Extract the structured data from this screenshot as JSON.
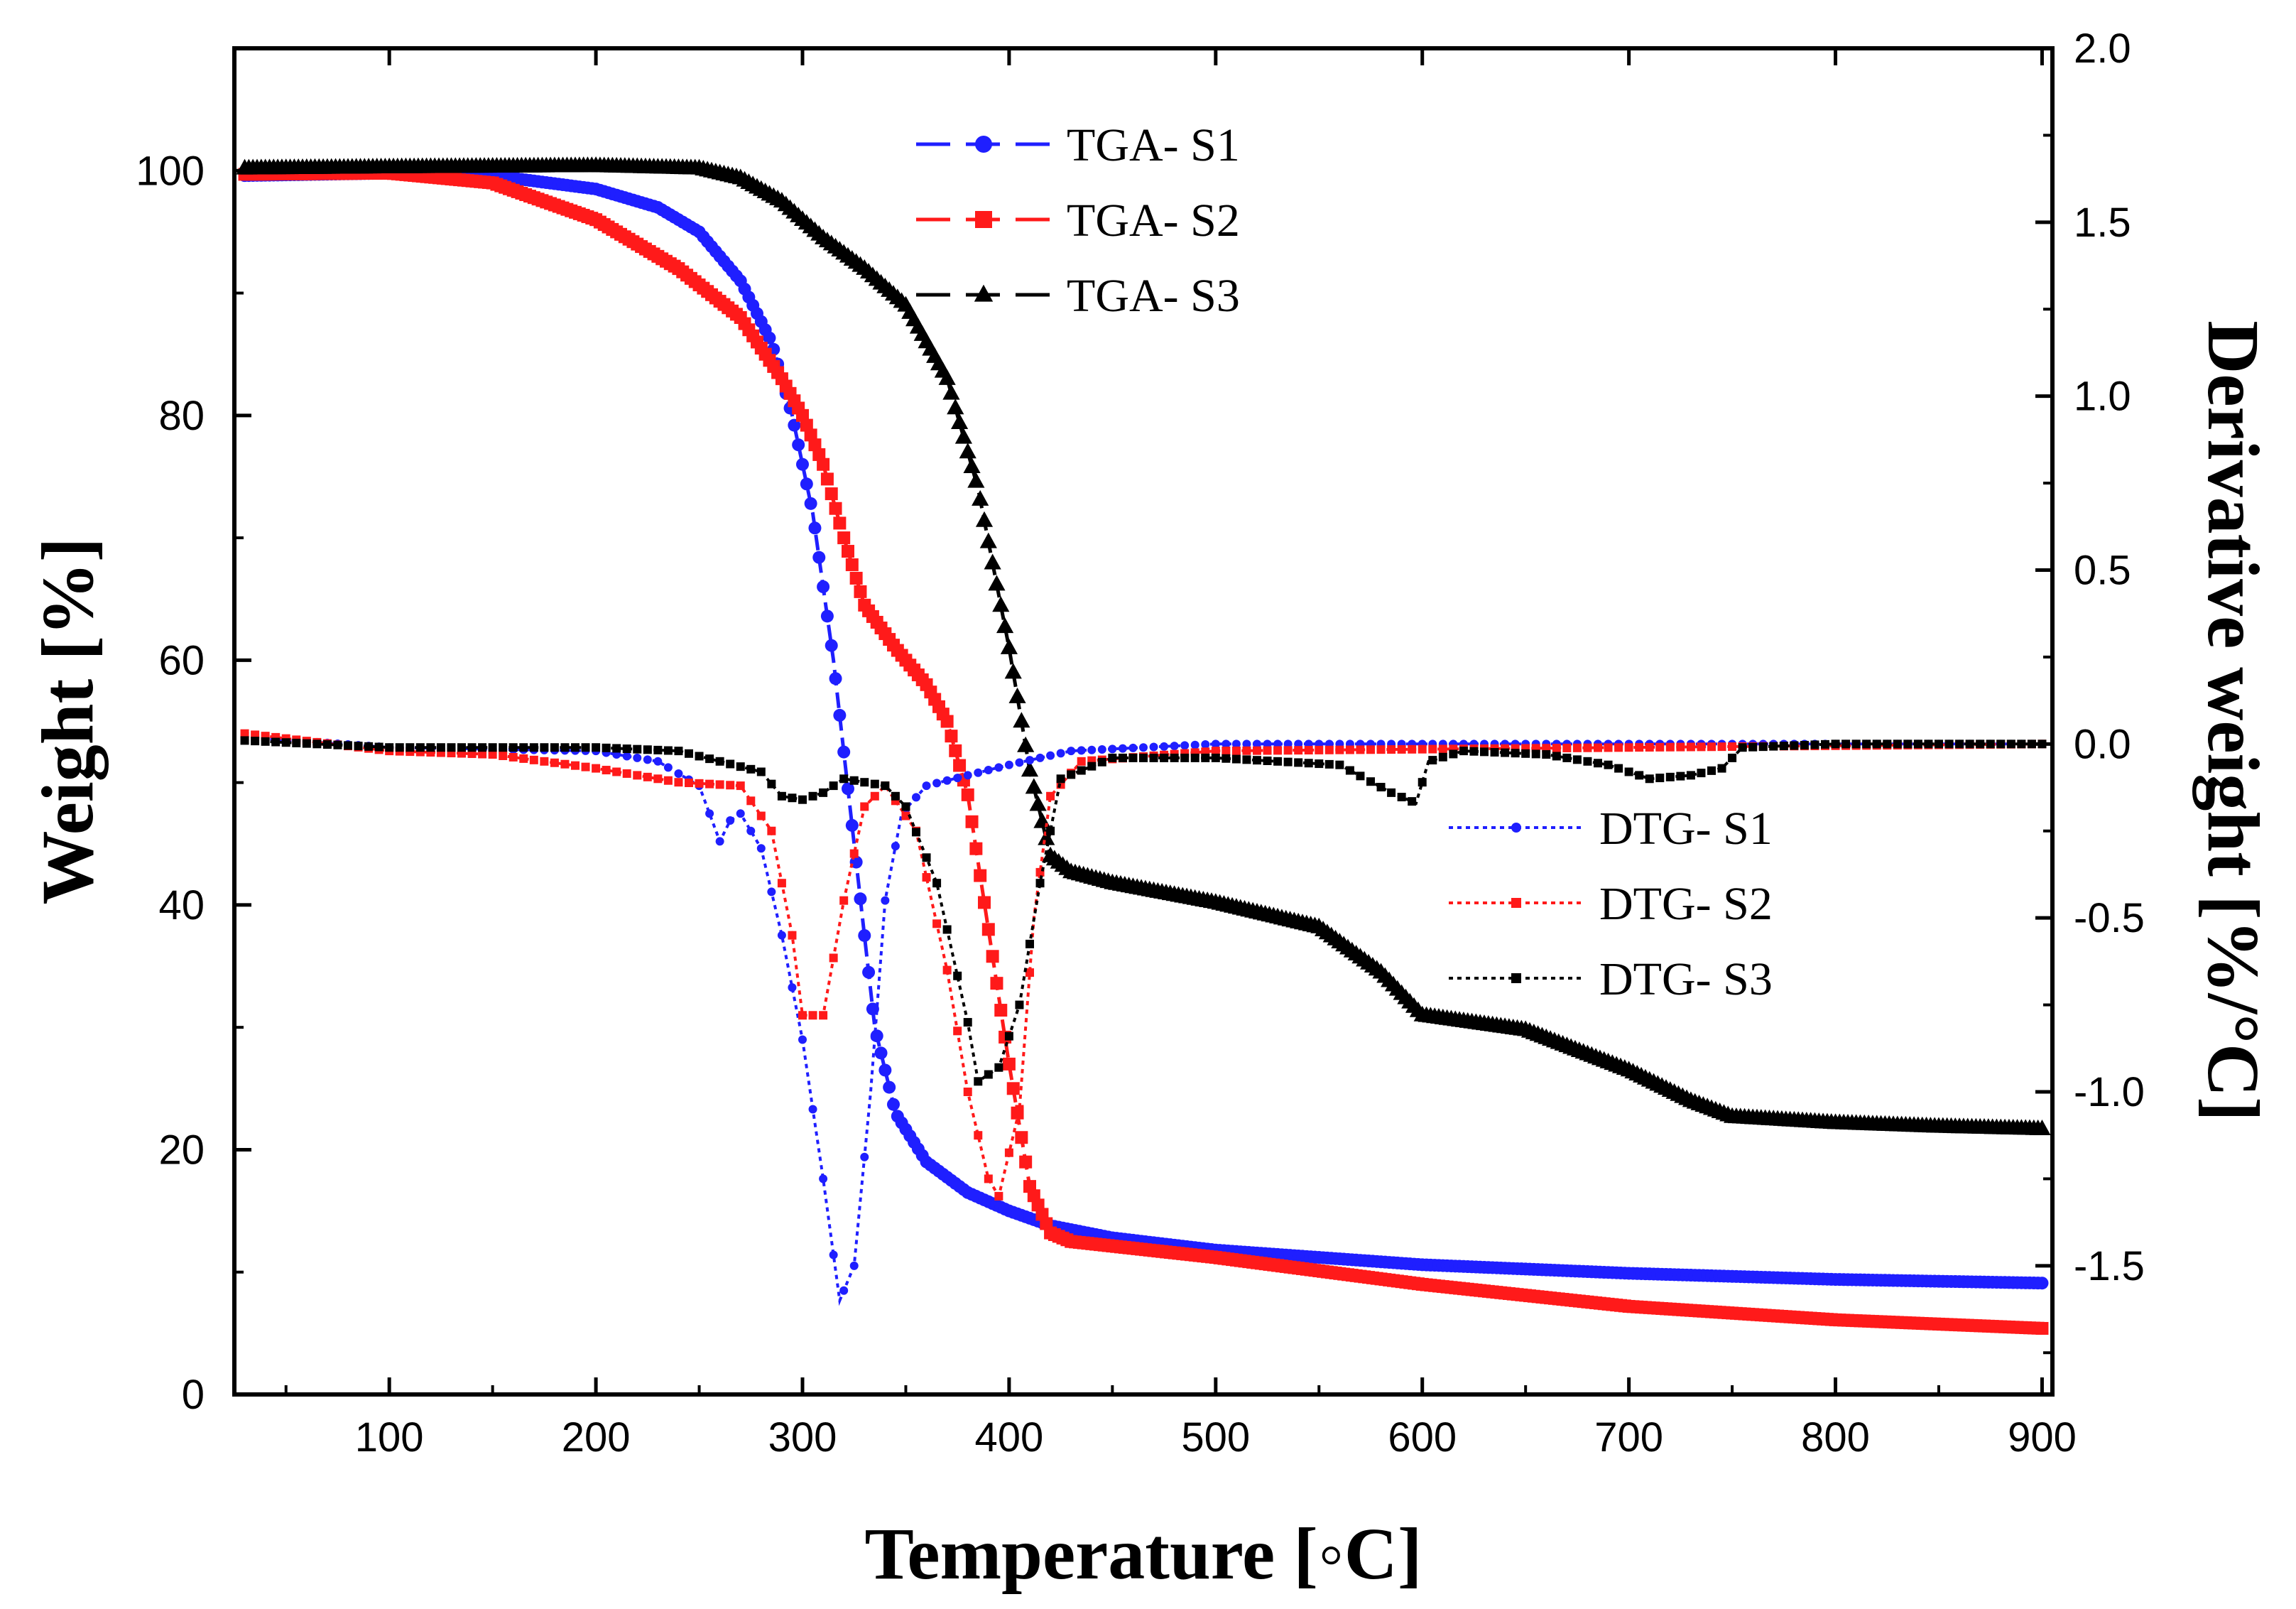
{
  "chart_data": {
    "type": "line",
    "xlabel": "Temperature [◦C]",
    "ylabel": "Weight [%]",
    "y2label": "Derivative weight [%/°C]",
    "xlim": [
      25,
      905
    ],
    "ylim": [
      0,
      110
    ],
    "y2lim": [
      -1.87,
      2.0
    ],
    "xticks": [
      "100",
      "200",
      "300",
      "400",
      "500",
      "600",
      "700",
      "800",
      "900"
    ],
    "yticks": [
      "0",
      "20",
      "40",
      "60",
      "80",
      "100"
    ],
    "y2ticks": [
      "2.0",
      "1.5",
      "1.0",
      "0.5",
      "0.0",
      "-0.5",
      "-1.0",
      "-1.5"
    ],
    "series": [
      {
        "name": "TGA- S1",
        "axis": "left",
        "color": "#1f1fff",
        "marker": "circle",
        "line": "dashed",
        "points": [
          [
            30,
            99.6
          ],
          [
            100,
            99.8
          ],
          [
            150,
            99.6
          ],
          [
            200,
            98.5
          ],
          [
            230,
            97
          ],
          [
            250,
            95
          ],
          [
            270,
            91
          ],
          [
            285,
            86
          ],
          [
            295,
            80
          ],
          [
            305,
            72
          ],
          [
            315,
            60
          ],
          [
            325,
            45
          ],
          [
            335,
            30
          ],
          [
            345,
            23
          ],
          [
            360,
            19
          ],
          [
            380,
            16.5
          ],
          [
            400,
            15
          ],
          [
            420,
            13.8
          ],
          [
            450,
            12.8
          ],
          [
            500,
            11.8
          ],
          [
            600,
            10.6
          ],
          [
            700,
            9.9
          ],
          [
            800,
            9.4
          ],
          [
            900,
            9.1
          ]
        ]
      },
      {
        "name": "TGA- S2",
        "axis": "left",
        "color": "#ff1a1a",
        "marker": "square",
        "line": "dashed",
        "points": [
          [
            30,
            99.7
          ],
          [
            100,
            99.8
          ],
          [
            150,
            99
          ],
          [
            200,
            96
          ],
          [
            240,
            92
          ],
          [
            270,
            88
          ],
          [
            290,
            83
          ],
          [
            300,
            80
          ],
          [
            310,
            76
          ],
          [
            320,
            70
          ],
          [
            330,
            64.5
          ],
          [
            345,
            61
          ],
          [
            360,
            58
          ],
          [
            370,
            55
          ],
          [
            380,
            49
          ],
          [
            390,
            38
          ],
          [
            400,
            27
          ],
          [
            410,
            17
          ],
          [
            420,
            13.2
          ],
          [
            430,
            12.5
          ],
          [
            500,
            11.2
          ],
          [
            600,
            9
          ],
          [
            700,
            7.2
          ],
          [
            800,
            6.1
          ],
          [
            900,
            5.4
          ]
        ]
      },
      {
        "name": "TGA- S3",
        "axis": "left",
        "color": "#000000",
        "marker": "triangle",
        "line": "dashed",
        "points": [
          [
            30,
            100.2
          ],
          [
            100,
            100.3
          ],
          [
            200,
            100.4
          ],
          [
            250,
            100.2
          ],
          [
            270,
            99.4
          ],
          [
            290,
            97.5
          ],
          [
            310,
            94.5
          ],
          [
            330,
            92
          ],
          [
            350,
            89
          ],
          [
            370,
            83
          ],
          [
            385,
            74
          ],
          [
            400,
            61
          ],
          [
            410,
            51
          ],
          [
            420,
            44
          ],
          [
            430,
            42.7
          ],
          [
            450,
            41.8
          ],
          [
            500,
            40.2
          ],
          [
            550,
            38.2
          ],
          [
            580,
            34.5
          ],
          [
            600,
            31
          ],
          [
            650,
            29.8
          ],
          [
            700,
            26.5
          ],
          [
            730,
            24
          ],
          [
            750,
            22.7
          ],
          [
            800,
            22.2
          ],
          [
            850,
            21.9
          ],
          [
            900,
            21.7
          ]
        ]
      },
      {
        "name": "DTG- S1",
        "axis": "right",
        "color": "#1f1fff",
        "marker": "circle",
        "line": "dotted",
        "points": [
          [
            30,
            0.02
          ],
          [
            100,
            -0.01
          ],
          [
            200,
            -0.02
          ],
          [
            230,
            -0.05
          ],
          [
            250,
            -0.12
          ],
          [
            260,
            -0.28
          ],
          [
            265,
            -0.22
          ],
          [
            270,
            -0.2
          ],
          [
            280,
            -0.3
          ],
          [
            290,
            -0.55
          ],
          [
            300,
            -0.85
          ],
          [
            310,
            -1.25
          ],
          [
            318,
            -1.6
          ],
          [
            325,
            -1.5
          ],
          [
            333,
            -1.0
          ],
          [
            340,
            -0.45
          ],
          [
            348,
            -0.2
          ],
          [
            360,
            -0.12
          ],
          [
            400,
            -0.06
          ],
          [
            430,
            -0.02
          ],
          [
            500,
            0
          ],
          [
            900,
            0
          ]
        ]
      },
      {
        "name": "DTG- S2",
        "axis": "right",
        "color": "#ff1a1a",
        "marker": "square",
        "line": "dotted",
        "points": [
          [
            30,
            0.03
          ],
          [
            100,
            -0.02
          ],
          [
            150,
            -0.03
          ],
          [
            200,
            -0.07
          ],
          [
            240,
            -0.11
          ],
          [
            270,
            -0.12
          ],
          [
            285,
            -0.25
          ],
          [
            295,
            -0.55
          ],
          [
            300,
            -0.78
          ],
          [
            310,
            -0.78
          ],
          [
            320,
            -0.45
          ],
          [
            330,
            -0.18
          ],
          [
            340,
            -0.12
          ],
          [
            355,
            -0.25
          ],
          [
            370,
            -0.65
          ],
          [
            380,
            -1.0
          ],
          [
            390,
            -1.25
          ],
          [
            395,
            -1.3
          ],
          [
            405,
            -1.05
          ],
          [
            412,
            -0.5
          ],
          [
            420,
            -0.15
          ],
          [
            435,
            -0.05
          ],
          [
            500,
            -0.02
          ],
          [
            900,
            0
          ]
        ]
      },
      {
        "name": "DTG- S3",
        "axis": "right",
        "color": "#000000",
        "marker": "square",
        "line": "dotted",
        "points": [
          [
            30,
            0.01
          ],
          [
            100,
            -0.01
          ],
          [
            200,
            -0.01
          ],
          [
            240,
            -0.02
          ],
          [
            260,
            -0.05
          ],
          [
            280,
            -0.08
          ],
          [
            290,
            -0.15
          ],
          [
            300,
            -0.16
          ],
          [
            310,
            -0.14
          ],
          [
            320,
            -0.1
          ],
          [
            340,
            -0.12
          ],
          [
            350,
            -0.18
          ],
          [
            365,
            -0.4
          ],
          [
            380,
            -0.8
          ],
          [
            385,
            -0.97
          ],
          [
            395,
            -0.93
          ],
          [
            405,
            -0.75
          ],
          [
            415,
            -0.4
          ],
          [
            425,
            -0.1
          ],
          [
            450,
            -0.04
          ],
          [
            500,
            -0.04
          ],
          [
            560,
            -0.06
          ],
          [
            585,
            -0.14
          ],
          [
            597,
            -0.17
          ],
          [
            603,
            -0.05
          ],
          [
            620,
            -0.02
          ],
          [
            660,
            -0.03
          ],
          [
            690,
            -0.06
          ],
          [
            710,
            -0.1
          ],
          [
            730,
            -0.09
          ],
          [
            745,
            -0.07
          ],
          [
            755,
            -0.01
          ],
          [
            800,
            0
          ],
          [
            900,
            0
          ]
        ]
      }
    ],
    "legend_top": [
      "TGA- S1",
      "TGA- S2",
      "TGA- S3"
    ],
    "legend_bottom": [
      "DTG- S1",
      "DTG- S2",
      "DTG- S3"
    ]
  }
}
